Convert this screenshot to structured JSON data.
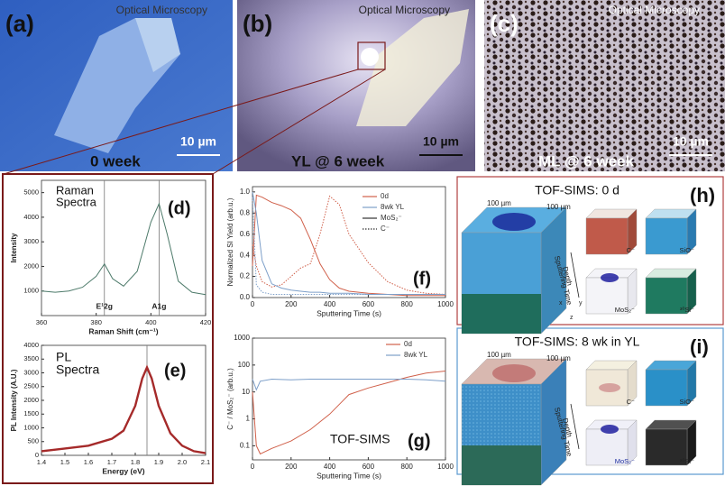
{
  "panels": [
    {
      "tag": "(a)",
      "caption": "Optical Microscopy",
      "scale": "10 µm",
      "label": "0 week"
    },
    {
      "tag": "(b)",
      "caption": "Optical Microscopy",
      "scale": "10 µm",
      "label": "YL @ 6 week"
    },
    {
      "tag": "(c)",
      "caption": "Optical Microscopy",
      "scale": "10 µm",
      "label": "ML @ 6 week"
    }
  ],
  "chart_data": [
    {
      "type": "line",
      "tag": "(d)",
      "notes": [
        "Raman",
        "Spectra"
      ],
      "x_label": "Raman Shift (cm⁻¹)",
      "y_label": "Intensity",
      "x": [
        360,
        365,
        370,
        375,
        380,
        383,
        386,
        390,
        395,
        400,
        403,
        406,
        410,
        415,
        420
      ],
      "series": [
        {
          "color": "#4d7a6a",
          "style": "solid",
          "values": [
            1000,
            950,
            1000,
            1150,
            1600,
            2100,
            1500,
            1200,
            1800,
            3800,
            4550,
            3300,
            1400,
            950,
            850
          ]
        }
      ],
      "xlim": [
        360,
        420
      ],
      "xticks": [
        360,
        380,
        400,
        420
      ],
      "ylim": [
        0,
        5500
      ],
      "yticks": [
        1000,
        2000,
        3000,
        4000,
        5000
      ],
      "peaks": [
        {
          "x": 383,
          "label": "E¹2g"
        },
        {
          "x": 403,
          "label": "A1g"
        }
      ]
    },
    {
      "type": "line",
      "tag": "(e)",
      "notes": [
        "PL",
        "Spectra"
      ],
      "x_label": "Energy (eV)",
      "y_label": "PL Intensity (A.U.)",
      "x": [
        1.4,
        1.5,
        1.6,
        1.7,
        1.75,
        1.8,
        1.83,
        1.85,
        1.87,
        1.9,
        1.95,
        2.0,
        2.05,
        2.1
      ],
      "series": [
        {
          "color": "#a52a2a",
          "style": "solid",
          "values": [
            150,
            250,
            350,
            600,
            900,
            1800,
            2800,
            3200,
            2800,
            1800,
            800,
            350,
            150,
            80
          ]
        }
      ],
      "xlim": [
        1.4,
        2.1
      ],
      "xticks": [
        1.4,
        1.5,
        1.6,
        1.7,
        1.8,
        1.9,
        {
          "value": 2,
          "label": "2.0"
        },
        2.1
      ],
      "ylim": [
        0,
        4000
      ],
      "yticks": [
        0,
        500,
        1000,
        1500,
        2000,
        2500,
        3000,
        3500,
        4000
      ],
      "peaks": [
        {
          "x": 1.85
        }
      ]
    },
    {
      "type": "line",
      "tag": "(f)",
      "x_label": "Sputtering Time (s)",
      "y_label": "Normalized SI Yield (arb.u.)",
      "x": [
        0,
        20,
        50,
        100,
        150,
        200,
        250,
        300,
        350,
        400,
        450,
        500,
        600,
        700,
        800,
        900,
        1000
      ],
      "series": [
        {
          "color": "#d0604a",
          "style": "solid",
          "values": [
            0.3,
            0.97,
            0.95,
            0.9,
            0.87,
            0.83,
            0.75,
            0.55,
            0.32,
            0.17,
            0.09,
            0.06,
            0.04,
            0.03,
            0.02,
            0.02,
            0.02
          ]
        },
        {
          "color": "#d0604a",
          "style": "dotted",
          "values": [
            0.5,
            0.3,
            0.15,
            0.1,
            0.12,
            0.2,
            0.28,
            0.32,
            0.6,
            0.96,
            0.88,
            0.6,
            0.33,
            0.15,
            0.07,
            0.04,
            0.03
          ]
        },
        {
          "color": "#7d9fc9",
          "style": "solid",
          "values": [
            1.0,
            0.8,
            0.35,
            0.13,
            0.09,
            0.07,
            0.06,
            0.05,
            0.05,
            0.04,
            0.04,
            0.04,
            0.03,
            0.03,
            0.03,
            0.03,
            0.03
          ]
        },
        {
          "color": "#7d9fc9",
          "style": "dotted",
          "values": [
            0.95,
            0.12,
            0.05,
            0.03,
            0.03,
            0.03,
            0.03,
            0.03,
            0.03,
            0.03,
            0.03,
            0.03,
            0.03,
            0.03,
            0.03,
            0.03,
            0.03
          ]
        }
      ],
      "legend": [
        {
          "label": "0d",
          "color": "#d0604a",
          "style": "solid"
        },
        {
          "label": "8wk YL",
          "color": "#7d9fc9",
          "style": "solid"
        },
        {
          "label": "MoS₂⁻",
          "color": "#333333",
          "style": "solid"
        },
        {
          "label": "C⁻",
          "color": "#333333",
          "style": "dotted"
        }
      ],
      "xlim": [
        0,
        1000
      ],
      "xticks": [
        0,
        200,
        400,
        600,
        800,
        1000
      ],
      "ylim": [
        0,
        1.05
      ],
      "yticks": [
        {
          "value": 0,
          "label": "0.0"
        },
        0.2,
        0.4,
        0.6,
        0.8,
        {
          "value": 1,
          "label": "1.0"
        }
      ]
    },
    {
      "type": "line",
      "tag": "(g)",
      "notes": [
        "TOF-SIMS"
      ],
      "x_label": "Sputtering Time (s)",
      "y_label": "C⁻ / MoS₂⁻ (arb.u.)",
      "log_y": true,
      "x": [
        0,
        20,
        40,
        100,
        200,
        300,
        400,
        500,
        600,
        700,
        800,
        900,
        1000
      ],
      "series": [
        {
          "color": "#d0604a",
          "style": "solid",
          "values": [
            10,
            0.1,
            0.05,
            0.08,
            0.15,
            0.4,
            1.5,
            8,
            14,
            22,
            35,
            50,
            60
          ]
        },
        {
          "color": "#7d9fc9",
          "style": "solid",
          "values": [
            30,
            12,
            25,
            30,
            28,
            30,
            30,
            30,
            30,
            30,
            30,
            28,
            25
          ]
        }
      ],
      "legend": [
        {
          "label": "0d",
          "color": "#d0604a",
          "style": "solid"
        },
        {
          "label": "8wk YL",
          "color": "#7d9fc9",
          "style": "solid"
        }
      ],
      "xlim": [
        0,
        1000
      ],
      "xticks": [
        0,
        200,
        400,
        600,
        800,
        1000
      ],
      "ylim": [
        0.03,
        1000
      ],
      "yticks": [
        0.1,
        1,
        10,
        100,
        1000
      ]
    }
  ],
  "tofsims": [
    {
      "title": "TOF-SIMS: 0 d",
      "tag": "(h)",
      "dims": [
        "100 µm",
        "100 µm"
      ],
      "depth": "Depth",
      "time": "Sputtering Time",
      "maps": [
        "C⁻",
        "SiO⁻",
        "MoS₂⁻",
        "³⁰Si⁻"
      ],
      "axes": [
        "x",
        "y",
        "z"
      ]
    },
    {
      "title": "TOF-SIMS: 8 wk in YL",
      "tag": "(i)",
      "dims": [
        "100 µm",
        "100 µm"
      ],
      "depth": "Depth",
      "time": "Sputtering Time",
      "maps": [
        "C⁻",
        "SiO⁻",
        "MoS₂⁻",
        "³⁰Si⁻"
      ]
    }
  ]
}
